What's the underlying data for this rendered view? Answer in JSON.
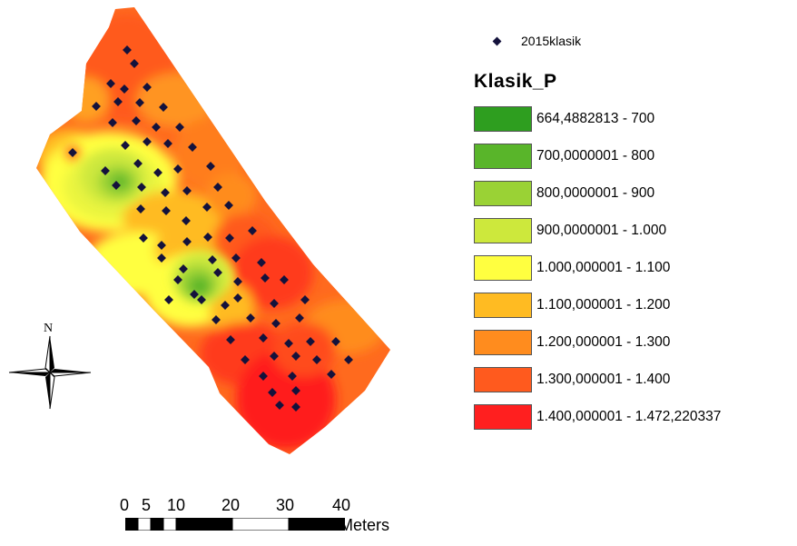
{
  "point_layer": {
    "label": "2015klasik",
    "icon": "diamond-marker-icon",
    "color": "#14123c"
  },
  "legend": {
    "title": "Klasik_P",
    "classes": [
      {
        "label": "664,4882813 - 700",
        "color": "#2e9e1f"
      },
      {
        "label": "700,0000001 - 800",
        "color": "#59b52a"
      },
      {
        "label": "800,0000001 - 900",
        "color": "#9ad235"
      },
      {
        "label": "900,0000001 - 1.000",
        "color": "#cde83c"
      },
      {
        "label": "1.000,000001 - 1.100",
        "color": "#ffff40"
      },
      {
        "label": "1.100,000001 - 1.200",
        "color": "#ffbb22"
      },
      {
        "label": "1.200,000001 - 1.300",
        "color": "#ff8c1e"
      },
      {
        "label": "1.300,000001 - 1.400",
        "color": "#ff5a1e"
      },
      {
        "label": "1.400,000001 - 1.472,220337",
        "color": "#ff1f1f"
      }
    ]
  },
  "north_arrow": {
    "label": "N",
    "icon": "north-arrow-icon"
  },
  "scale_bar": {
    "ticks": [
      "0",
      "5",
      "10",
      "20",
      "30",
      "40"
    ],
    "unit": "Meters"
  }
}
